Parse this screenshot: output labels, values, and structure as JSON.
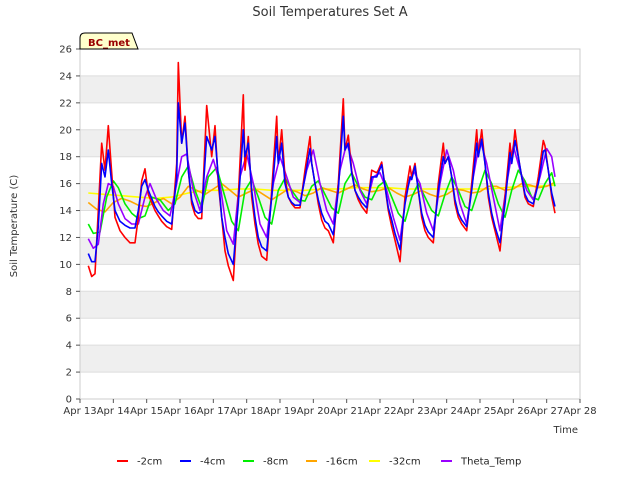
{
  "chart_data": {
    "type": "line",
    "title": "Soil Temperatures Set A",
    "xlabel": "Time",
    "ylabel": "Soil Temperature (C)",
    "badge": "BC_met",
    "x_ticks": [
      "Apr 13",
      "Apr 14",
      "Apr 15",
      "Apr 16",
      "Apr 17",
      "Apr 18",
      "Apr 19",
      "Apr 20",
      "Apr 21",
      "Apr 22",
      "Apr 23",
      "Apr 24",
      "Apr 25",
      "Apr 26",
      "Apr 27",
      "Apr 28"
    ],
    "xlim": [
      13,
      28
    ],
    "ylim": [
      0,
      26
    ],
    "y_ticks": [
      0,
      2,
      4,
      6,
      8,
      10,
      12,
      14,
      16,
      18,
      20,
      22,
      24,
      26
    ],
    "grid": "horizontal bands",
    "legend_position": "bottom",
    "series": [
      {
        "name": "-2cm",
        "color": "#ff0000",
        "x": [
          13.25,
          13.35,
          13.45,
          13.55,
          13.65,
          13.75,
          13.85,
          13.95,
          14.05,
          14.2,
          14.35,
          14.5,
          14.65,
          14.75,
          14.85,
          14.95,
          15.05,
          15.25,
          15.35,
          15.45,
          15.6,
          15.75,
          15.9,
          15.95,
          16.05,
          16.15,
          16.25,
          16.35,
          16.45,
          16.55,
          16.65,
          16.8,
          16.95,
          17.05,
          17.15,
          17.25,
          17.35,
          17.45,
          17.6,
          17.75,
          17.9,
          17.95,
          18.05,
          18.15,
          18.25,
          18.35,
          18.45,
          18.6,
          18.75,
          18.9,
          18.95,
          19.05,
          19.15,
          19.25,
          19.35,
          19.45,
          19.6,
          19.75,
          19.9,
          19.95,
          20.05,
          20.15,
          20.25,
          20.35,
          20.45,
          20.6,
          20.75,
          20.9,
          20.95,
          21.05,
          21.15,
          21.25,
          21.35,
          21.45,
          21.6,
          21.75,
          21.9,
          21.95,
          22.05,
          22.15,
          22.25,
          22.35,
          22.45,
          22.6,
          22.75,
          22.9,
          22.95,
          23.05,
          23.15,
          23.25,
          23.35,
          23.45,
          23.6,
          23.75,
          23.9,
          23.95,
          24.05,
          24.15,
          24.25,
          24.35,
          24.45,
          24.6,
          24.75,
          24.9,
          24.95,
          25.05,
          25.15,
          25.25,
          25.35,
          25.45,
          25.6,
          25.75,
          25.9,
          25.95,
          26.05,
          26.15,
          26.25,
          26.35,
          26.45,
          26.6,
          26.75,
          26.9,
          26.95,
          27.05,
          27.15,
          27.25
        ],
        "y": [
          9.9,
          9.1,
          9.3,
          14.0,
          19.0,
          17.0,
          20.3,
          16.8,
          13.5,
          12.5,
          12.0,
          11.6,
          11.6,
          13.5,
          16.2,
          17.1,
          15.2,
          14.0,
          13.6,
          13.2,
          12.8,
          12.6,
          17.5,
          25.0,
          19.0,
          21.0,
          17.0,
          14.5,
          13.7,
          13.4,
          13.4,
          21.8,
          18.0,
          20.3,
          16.0,
          13.5,
          11.0,
          9.9,
          8.8,
          15.0,
          22.6,
          17.0,
          19.5,
          15.0,
          13.0,
          11.5,
          10.6,
          10.3,
          15.5,
          21.0,
          17.5,
          20.0,
          16.5,
          15.0,
          14.5,
          14.2,
          14.2,
          17.0,
          19.5,
          17.5,
          16.0,
          14.5,
          13.3,
          12.7,
          12.5,
          11.6,
          16.0,
          22.3,
          18.5,
          19.6,
          17.0,
          15.5,
          14.8,
          14.3,
          13.8,
          17.0,
          16.8,
          17.0,
          17.6,
          15.8,
          14.0,
          12.8,
          11.8,
          10.2,
          15.0,
          17.3,
          16.5,
          17.5,
          15.5,
          13.5,
          12.5,
          12.0,
          11.6,
          16.0,
          19.0,
          17.5,
          18.0,
          16.5,
          14.5,
          13.5,
          13.0,
          12.5,
          16.0,
          20.0,
          18.0,
          20.0,
          17.5,
          15.0,
          13.5,
          12.5,
          11.0,
          15.0,
          19.0,
          17.5,
          20.0,
          18.0,
          16.5,
          15.0,
          14.5,
          14.3,
          16.5,
          19.2,
          18.8,
          17.0,
          15.0,
          13.8
        ]
      },
      {
        "name": "-4cm",
        "color": "#0000ff",
        "x": [
          13.25,
          13.35,
          13.45,
          13.55,
          13.65,
          13.75,
          13.85,
          13.95,
          14.05,
          14.2,
          14.35,
          14.5,
          14.65,
          14.75,
          14.85,
          14.95,
          15.05,
          15.25,
          15.35,
          15.45,
          15.6,
          15.75,
          15.9,
          15.95,
          16.05,
          16.15,
          16.25,
          16.35,
          16.45,
          16.55,
          16.65,
          16.8,
          16.95,
          17.05,
          17.15,
          17.25,
          17.35,
          17.45,
          17.6,
          17.75,
          17.9,
          17.95,
          18.05,
          18.15,
          18.25,
          18.35,
          18.45,
          18.6,
          18.75,
          18.9,
          18.95,
          19.05,
          19.15,
          19.25,
          19.35,
          19.45,
          19.6,
          19.75,
          19.9,
          19.95,
          20.05,
          20.15,
          20.25,
          20.35,
          20.45,
          20.6,
          20.75,
          20.9,
          20.95,
          21.05,
          21.15,
          21.25,
          21.35,
          21.45,
          21.6,
          21.75,
          21.9,
          21.95,
          22.05,
          22.15,
          22.25,
          22.35,
          22.45,
          22.6,
          22.75,
          22.9,
          22.95,
          23.05,
          23.15,
          23.25,
          23.35,
          23.45,
          23.6,
          23.75,
          23.9,
          23.95,
          24.05,
          24.15,
          24.25,
          24.35,
          24.45,
          24.6,
          24.75,
          24.9,
          24.95,
          25.05,
          25.15,
          25.25,
          25.35,
          25.45,
          25.6,
          25.75,
          25.9,
          25.95,
          26.05,
          26.15,
          26.25,
          26.35,
          26.45,
          26.6,
          26.75,
          26.9,
          26.95,
          27.05,
          27.15,
          27.25
        ],
        "y": [
          10.8,
          10.2,
          10.2,
          12.8,
          17.5,
          16.5,
          18.5,
          16.0,
          14.0,
          13.2,
          12.9,
          12.7,
          12.7,
          14.0,
          15.8,
          16.3,
          15.5,
          14.3,
          13.9,
          13.6,
          13.2,
          13.0,
          16.5,
          22.0,
          19.0,
          20.5,
          17.0,
          14.8,
          14.0,
          13.8,
          13.9,
          19.5,
          18.5,
          19.5,
          16.5,
          13.5,
          12.0,
          10.8,
          10.0,
          14.5,
          20.0,
          18.0,
          19.0,
          15.5,
          13.5,
          12.0,
          11.3,
          11.0,
          15.0,
          19.5,
          17.5,
          19.0,
          16.0,
          15.0,
          14.6,
          14.4,
          14.4,
          16.5,
          18.6,
          17.5,
          16.0,
          14.8,
          13.8,
          13.2,
          13.0,
          12.2,
          15.5,
          21.0,
          18.5,
          19.0,
          16.8,
          15.5,
          15.0,
          14.6,
          14.2,
          16.5,
          16.5,
          16.8,
          17.4,
          15.8,
          14.2,
          13.3,
          12.3,
          11.1,
          14.5,
          16.5,
          16.3,
          17.3,
          15.5,
          13.8,
          12.9,
          12.4,
          12.0,
          15.5,
          18.0,
          17.5,
          18.0,
          16.5,
          14.8,
          13.8,
          13.3,
          12.8,
          15.5,
          19.0,
          18.0,
          19.3,
          17.5,
          15.3,
          13.8,
          12.8,
          11.6,
          14.5,
          18.3,
          17.5,
          19.2,
          18.0,
          16.5,
          15.2,
          14.7,
          14.5,
          16.0,
          18.4,
          18.5,
          17.0,
          15.3,
          14.3
        ]
      },
      {
        "name": "-8cm",
        "color": "#00ee00",
        "x": [
          13.25,
          13.4,
          13.6,
          13.8,
          14.0,
          14.15,
          14.35,
          14.55,
          14.75,
          14.95,
          15.15,
          15.4,
          15.65,
          15.85,
          16.05,
          16.25,
          16.45,
          16.65,
          16.85,
          17.1,
          17.35,
          17.55,
          17.75,
          17.95,
          18.15,
          18.35,
          18.55,
          18.75,
          18.95,
          19.15,
          19.35,
          19.55,
          19.75,
          19.95,
          20.15,
          20.35,
          20.55,
          20.75,
          20.95,
          21.15,
          21.35,
          21.55,
          21.75,
          21.95,
          22.15,
          22.35,
          22.55,
          22.75,
          22.95,
          23.15,
          23.35,
          23.55,
          23.75,
          23.95,
          24.15,
          24.35,
          24.55,
          24.75,
          24.95,
          25.15,
          25.35,
          25.55,
          25.75,
          25.95,
          26.15,
          26.35,
          26.55,
          26.75,
          26.95,
          27.15,
          27.25
        ],
        "y": [
          13.0,
          12.3,
          12.4,
          15.0,
          16.2,
          15.7,
          14.5,
          13.8,
          13.4,
          13.6,
          15.0,
          14.8,
          14.0,
          14.5,
          16.5,
          17.3,
          15.5,
          14.2,
          16.5,
          17.2,
          15.0,
          13.2,
          12.5,
          15.5,
          16.3,
          15.0,
          13.5,
          13.0,
          15.5,
          16.4,
          15.5,
          14.8,
          14.7,
          15.8,
          16.2,
          15.2,
          14.2,
          13.8,
          16.0,
          16.8,
          15.8,
          15.0,
          14.8,
          15.8,
          16.2,
          15.0,
          13.8,
          13.2,
          15.0,
          16.0,
          15.0,
          14.0,
          13.6,
          15.2,
          16.5,
          15.5,
          14.3,
          14.0,
          15.5,
          17.0,
          16.0,
          14.5,
          13.5,
          15.5,
          17.0,
          16.2,
          15.0,
          14.8,
          16.0,
          16.8,
          15.8
        ]
      },
      {
        "name": "-16cm",
        "color": "#ffa500",
        "x": [
          13.25,
          13.5,
          13.75,
          14.0,
          14.25,
          14.5,
          14.75,
          15.0,
          15.25,
          15.5,
          15.75,
          16.0,
          16.25,
          16.5,
          16.75,
          17.0,
          17.25,
          17.5,
          17.75,
          18.0,
          18.25,
          18.5,
          18.75,
          19.0,
          19.25,
          19.5,
          19.75,
          20.0,
          20.25,
          20.5,
          20.75,
          21.0,
          21.25,
          21.5,
          21.75,
          22.0,
          22.25,
          22.5,
          22.75,
          23.0,
          23.25,
          23.5,
          23.75,
          24.0,
          24.25,
          24.5,
          24.75,
          25.0,
          25.25,
          25.5,
          25.75,
          26.0,
          26.25,
          26.5,
          26.75,
          27.0,
          27.25
        ],
        "y": [
          14.6,
          14.1,
          13.9,
          14.6,
          14.9,
          14.7,
          14.4,
          14.3,
          14.6,
          14.9,
          14.5,
          15.0,
          15.8,
          15.5,
          15.2,
          15.6,
          16.0,
          15.5,
          15.0,
          15.3,
          15.6,
          15.2,
          14.8,
          15.2,
          15.6,
          15.4,
          15.1,
          15.3,
          15.7,
          15.5,
          15.3,
          15.6,
          15.9,
          15.6,
          15.4,
          15.5,
          15.7,
          15.3,
          15.0,
          15.2,
          15.5,
          15.2,
          15.0,
          15.2,
          15.6,
          15.5,
          15.3,
          15.4,
          15.8,
          15.8,
          15.5,
          15.6,
          16.0,
          15.9,
          15.7,
          15.8,
          16.1
        ]
      },
      {
        "name": "-32cm",
        "color": "#ffff00",
        "x": [
          13.25,
          13.75,
          14.25,
          14.75,
          15.25,
          15.75,
          16.25,
          16.75,
          17.25,
          17.75,
          18.25,
          18.75,
          19.25,
          19.75,
          20.25,
          20.75,
          21.25,
          21.75,
          22.25,
          22.75,
          23.25,
          23.75,
          24.25,
          24.75,
          25.25,
          25.75,
          26.25,
          26.75,
          27.25
        ],
        "y": [
          15.3,
          15.2,
          15.1,
          15.0,
          14.9,
          15.0,
          15.3,
          15.5,
          15.5,
          15.6,
          15.6,
          15.5,
          15.5,
          15.5,
          15.6,
          15.6,
          15.7,
          15.7,
          15.7,
          15.6,
          15.6,
          15.6,
          15.6,
          15.6,
          15.6,
          15.7,
          15.8,
          15.8,
          15.9
        ]
      },
      {
        "name": "Theta_Temp",
        "color": "#9900ff",
        "x": [
          13.25,
          13.4,
          13.55,
          13.7,
          13.85,
          14.0,
          14.15,
          14.35,
          14.55,
          14.75,
          14.95,
          15.1,
          15.3,
          15.5,
          15.7,
          15.9,
          16.05,
          16.2,
          16.4,
          16.6,
          16.8,
          17.0,
          17.2,
          17.4,
          17.6,
          17.8,
          18.0,
          18.2,
          18.4,
          18.6,
          18.8,
          19.0,
          19.2,
          19.4,
          19.6,
          19.8,
          20.0,
          20.2,
          20.4,
          20.6,
          20.8,
          21.0,
          21.2,
          21.4,
          21.6,
          21.8,
          22.0,
          22.2,
          22.4,
          22.6,
          22.8,
          23.0,
          23.2,
          23.4,
          23.6,
          23.8,
          24.0,
          24.2,
          24.4,
          24.6,
          24.8,
          25.0,
          25.2,
          25.4,
          25.6,
          25.8,
          26.0,
          26.2,
          26.4,
          26.6,
          26.8,
          27.0,
          27.15,
          27.25
        ],
        "y": [
          11.9,
          11.2,
          11.5,
          14.5,
          16.0,
          15.8,
          14.5,
          13.4,
          13.0,
          13.0,
          15.0,
          16.0,
          14.8,
          14.0,
          13.6,
          16.0,
          18.0,
          18.2,
          15.5,
          14.0,
          16.5,
          17.8,
          16.0,
          12.5,
          11.5,
          16.5,
          18.2,
          16.0,
          13.0,
          12.0,
          16.0,
          18.0,
          16.5,
          15.0,
          14.6,
          17.0,
          18.5,
          16.0,
          14.0,
          13.0,
          17.0,
          19.0,
          17.5,
          15.5,
          14.5,
          16.5,
          16.8,
          15.5,
          13.5,
          11.8,
          15.5,
          17.0,
          16.0,
          13.8,
          12.5,
          16.0,
          18.5,
          17.0,
          14.5,
          13.0,
          16.5,
          19.3,
          17.5,
          15.0,
          12.5,
          16.0,
          18.8,
          17.0,
          15.5,
          14.8,
          16.5,
          18.6,
          18.0,
          16.5
        ]
      }
    ]
  }
}
